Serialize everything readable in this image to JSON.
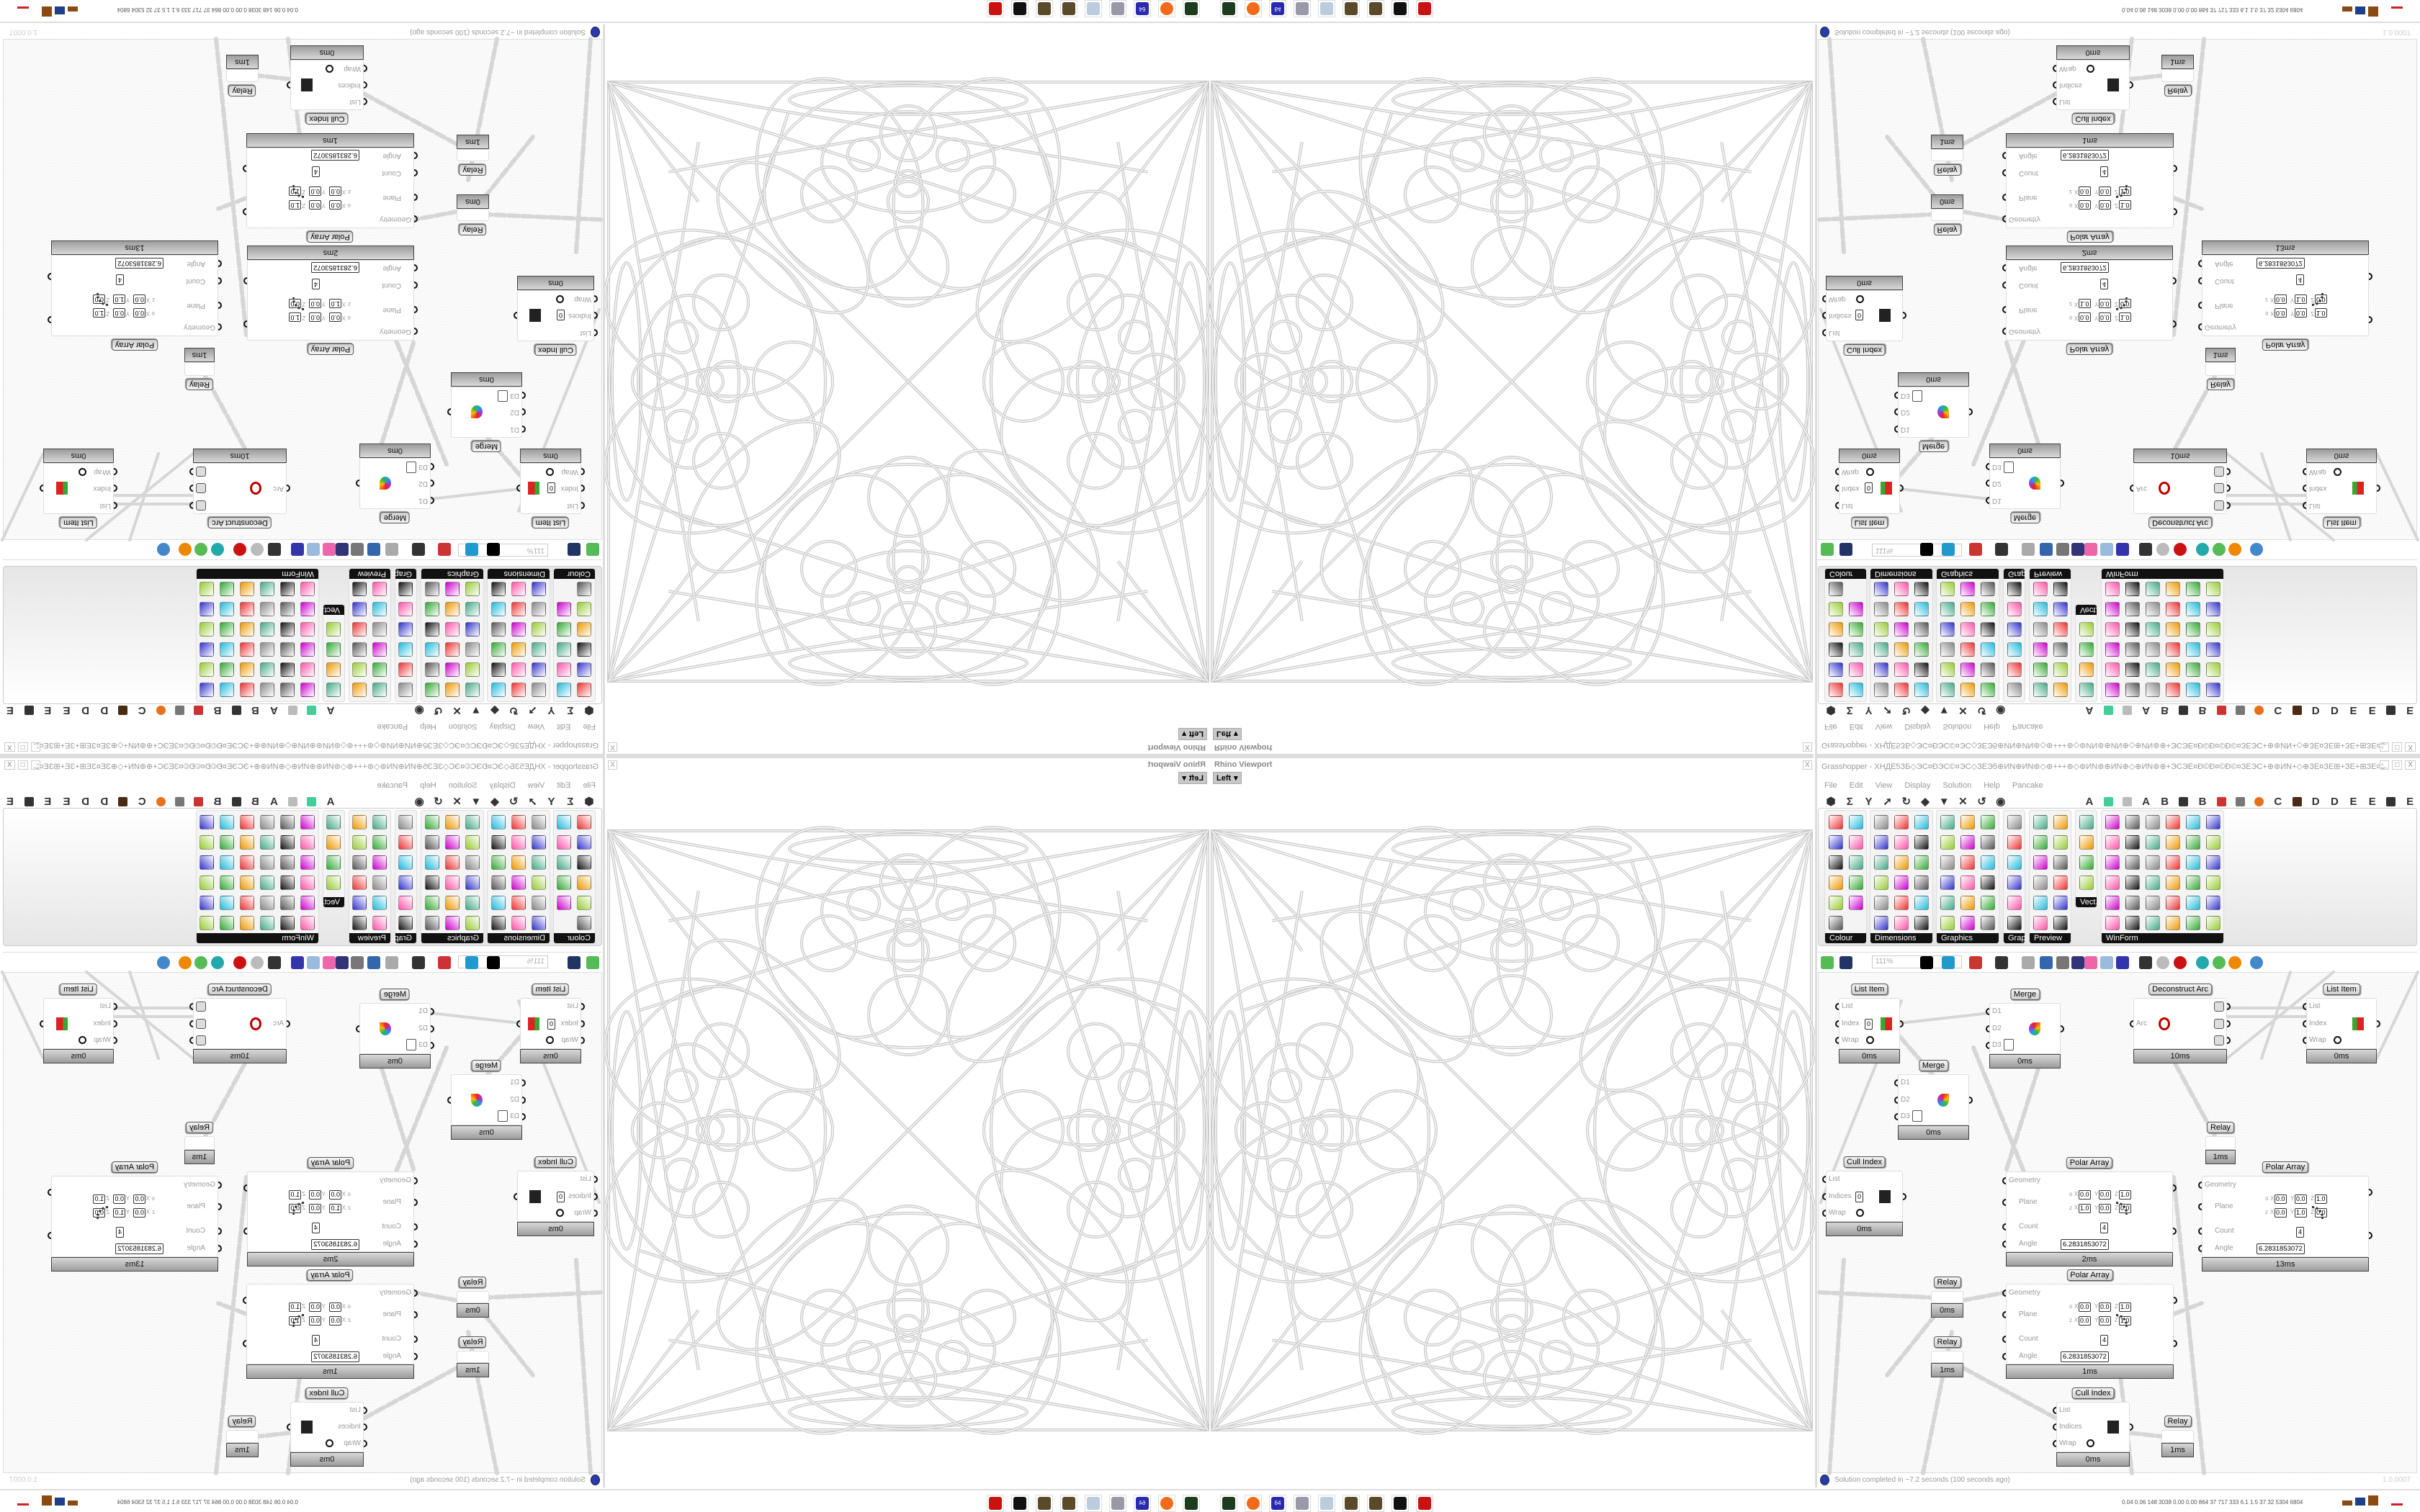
{
  "viewport": {
    "title": "Rhino Viewport",
    "view_name": "Left",
    "view_dropdown": "▾",
    "close": "X"
  },
  "grasshopper": {
    "title": "Grasshopper - XHДЕ5ЗБ◇ЭС¤ÐЭС©¤ЭС◇ЗЕЭ5⊕ИN⊕ИN⊛◇⊛+++⊛◇⊛ИN⊛⊕ИN⊕◇⊕ИN⊛⊕+ЭСЭЕ¤Ð©Ð¤©Ð©¤ЗЕЭС+⊕⊛ИN+◇⊕ЗЕ¤ЗЕ⊞+ЗЕ+⊞ЗЕ¤ЗЕ⊕◇⊕ЖСЭЗЕ⊞+ЭС...",
    "window_buttons": [
      "_",
      "□",
      "X"
    ],
    "menu": [
      "File",
      "Edit",
      "View",
      "Display",
      "Solution",
      "Help",
      "Pancake"
    ],
    "tab_letters": [
      "A",
      "A",
      "B",
      "B",
      "C",
      "D",
      "D",
      "E",
      "E",
      "E"
    ],
    "panels": [
      "Colour",
      "Dimensions",
      "Graphics",
      "Grap...",
      "Preview",
      "Vect...",
      "WinForm"
    ],
    "zoom": "111%"
  },
  "canvas": {
    "plane_axes": {
      "o": "o",
      "z": "z",
      "x": "X",
      "y": "Y",
      "zz": "Z"
    },
    "nodes": [
      {
        "kind": "list",
        "title": "List Item",
        "inputs": [
          "List",
          "Index",
          "Wrap"
        ],
        "outputs": [
          "i"
        ],
        "value": "0",
        "time": "0ms"
      },
      {
        "kind": "merge",
        "title": "Merge",
        "inputs": [
          "D1",
          "D2",
          "D3"
        ],
        "outputs": [
          "Result"
        ],
        "time": "0ms"
      },
      {
        "kind": "arc",
        "title": "Deconstruct Arc",
        "inputs": [
          "Arc"
        ],
        "outputs": [
          "Base Plane",
          "Radius",
          "Angle"
        ],
        "time": "10ms"
      },
      {
        "kind": "list",
        "title": "List Item",
        "inputs": [
          "List",
          "Index",
          "Wrap"
        ],
        "outputs": [
          "i"
        ],
        "time": "0ms"
      },
      {
        "kind": "merge",
        "title": "Merge",
        "inputs": [
          "D1",
          "D2",
          "D3"
        ],
        "outputs": [
          "Result"
        ],
        "time": "0ms"
      },
      {
        "kind": "relay",
        "title": "Relay",
        "time": "1ms"
      },
      {
        "kind": "cull",
        "title": "Cull Index",
        "inputs": [
          "List",
          "Indices",
          "Wrap"
        ],
        "outputs": [
          "List"
        ],
        "value": "0",
        "time": "0ms"
      },
      {
        "kind": "polar",
        "title": "Polar Array",
        "inputs": [
          "Geometry",
          "Plane",
          "Count",
          "Angle"
        ],
        "outputs": [
          "Geometry",
          "Transform"
        ],
        "origin": [
          "0.0",
          "0.0",
          "1.0"
        ],
        "zaxis": [
          "1.0",
          "0.0",
          "0.0"
        ],
        "count": "4",
        "angle": "6.2831853072",
        "time": "2ms"
      },
      {
        "kind": "polar",
        "title": "Polar Array",
        "inputs": [
          "Geometry",
          "Plane",
          "Count",
          "Angle"
        ],
        "outputs": [
          "Geometry",
          "Transform"
        ],
        "origin": [
          "0.0",
          "0.0",
          "1.0"
        ],
        "zaxis": [
          "0.0",
          "1.0",
          "0.0"
        ],
        "count": "4",
        "angle": "6.2831853072",
        "time": "13ms"
      },
      {
        "kind": "relay",
        "title": "Relay",
        "time": "0ms"
      },
      {
        "kind": "polar",
        "title": "Polar Array",
        "inputs": [
          "Geometry",
          "Plane",
          "Count",
          "Angle"
        ],
        "outputs": [
          "Geometry",
          "Transform"
        ],
        "origin": [
          "0.0",
          "0.0",
          "1.0"
        ],
        "zaxis": [
          "0.0",
          "0.0",
          "1.0"
        ],
        "count": "4",
        "angle": "6.2831853072",
        "time": "1ms"
      },
      {
        "kind": "relay",
        "title": "Relay",
        "time": "1ms"
      },
      {
        "kind": "cull",
        "title": "Cull Index",
        "inputs": [
          "List",
          "Indices",
          "Wrap"
        ],
        "outputs": [
          "List"
        ],
        "time": "0ms"
      },
      {
        "kind": "relay",
        "title": "Relay",
        "time": "1ms"
      }
    ]
  },
  "status": {
    "message": "Solution completed in ~7.2 seconds (100 seconds ago)",
    "version": "1.0.0007"
  },
  "taskbar": {
    "icons": [
      "terminal-icon",
      "firefox-icon",
      "floppy-icon",
      "script-icon",
      "notepad-icon",
      "stone-icon",
      "stone-icon",
      "rhino-icon",
      "gear-icon"
    ],
    "floppy_label": "64",
    "stats": "0.04 0.06 148 3038 0.00 0.00 864 37 717 333 6.1 1.5 37 32 5304 6804"
  }
}
